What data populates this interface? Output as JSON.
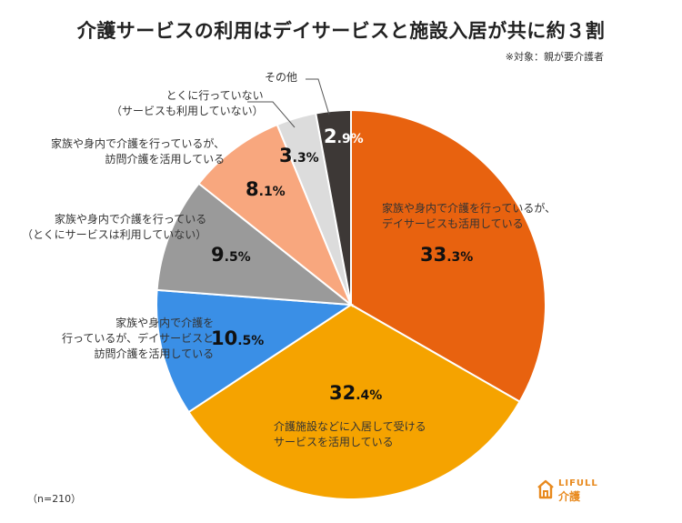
{
  "title": "介護サービスの利用はデイサービスと施設入居が共に約３割",
  "subtitle": "※対象：親が要介護者",
  "sample_note": "（n=210）",
  "logo": {
    "line1": "LIFULL",
    "line2": "介護"
  },
  "chart_data": {
    "type": "pie",
    "title": "介護サービスの利用はデイサービスと施設入居が共に約３割",
    "start": "12 o'clock, clockwise",
    "slices": [
      {
        "label_lines": [
          "家族や身内で介護を行っているが、",
          "デイサービスも活用している"
        ],
        "value": 33.3,
        "int": "33",
        "dec": ".3",
        "color": "#e8620f"
      },
      {
        "label_lines": [
          "介護施設などに入居して受ける",
          "サービスを活用している"
        ],
        "value": 32.4,
        "int": "32",
        "dec": ".4",
        "color": "#f5a300"
      },
      {
        "label_lines": [
          "家族や身内で介護を",
          "行っているが、デイサービスと",
          "訪問介護を活用している"
        ],
        "value": 10.5,
        "int": "10",
        "dec": ".5",
        "color": "#3a8fe6"
      },
      {
        "label_lines": [
          "家族や身内で介護を行っている",
          "（とくにサービスは利用していない）"
        ],
        "value": 9.5,
        "int": "9",
        "dec": ".5",
        "color": "#9a9a9a"
      },
      {
        "label_lines": [
          "家族や身内で介護を行っているが、",
          "訪問介護を活用している"
        ],
        "value": 8.1,
        "int": "8",
        "dec": ".1",
        "color": "#f8a77e"
      },
      {
        "label_lines": [
          "とくに行っていない",
          "（サービスも利用していない）"
        ],
        "value": 3.3,
        "int": "3",
        "dec": ".3",
        "color": "#dcdcdc"
      },
      {
        "label_lines": [
          "その他"
        ],
        "value": 2.9,
        "int": "2",
        "dec": ".9",
        "color": "#3d3836"
      }
    ],
    "percent_sign": "%"
  }
}
